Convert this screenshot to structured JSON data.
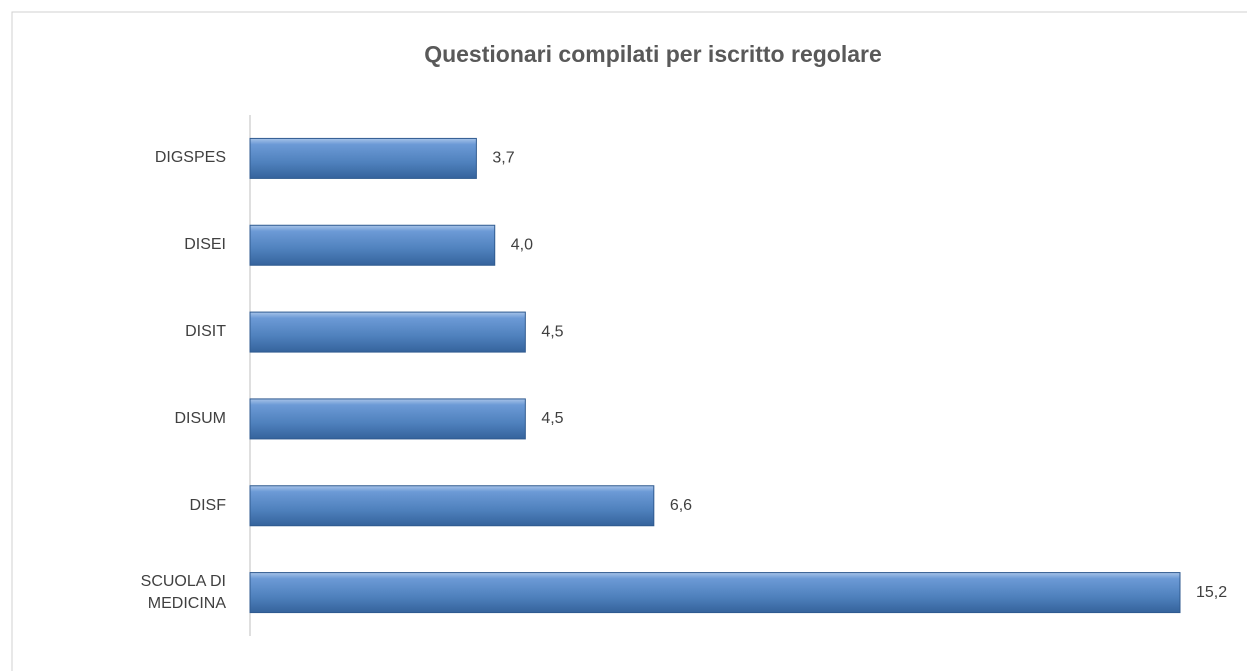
{
  "chart_data": {
    "type": "hbar",
    "title": "Questionari compilati per iscritto regolare",
    "categories": [
      "DIGSPES",
      "DISEI",
      "DISIT",
      "DISUM",
      "DISF",
      "SCUOLA DI MEDICINA"
    ],
    "values": [
      3.7,
      4.0,
      4.5,
      4.5,
      6.6,
      15.2
    ],
    "value_labels": [
      "3,7",
      "4,0",
      "4,5",
      "4,5",
      "6,6",
      "15,2"
    ],
    "color": "#4f81bd"
  }
}
